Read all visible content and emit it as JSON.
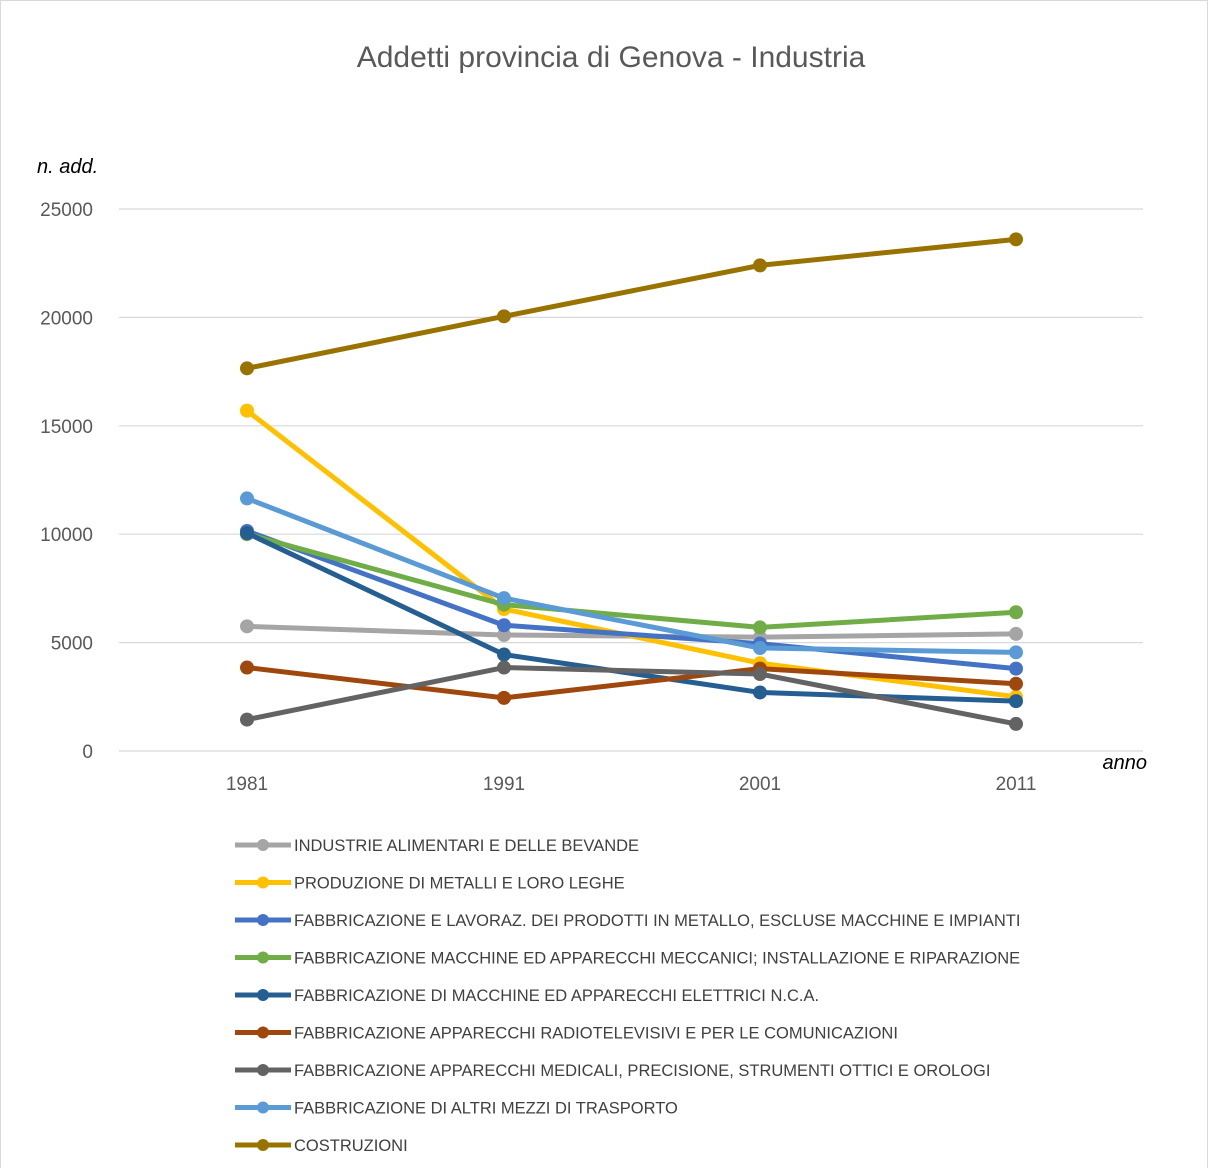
{
  "chart_data": {
    "type": "line",
    "title": "Addetti provincia di Genova - Industria",
    "xlabel": "anno",
    "ylabel": "n. add.",
    "x": [
      "1981",
      "1991",
      "2001",
      "2011"
    ],
    "ylim": [
      0,
      25000
    ],
    "yticks": [
      "0",
      "5000",
      "10000",
      "15000",
      "20000",
      "25000"
    ],
    "grid": true,
    "legend": "bottom",
    "series": [
      {
        "name": "INDUSTRIE ALIMENTARI E DELLE BEVANDE",
        "color": "#a5a5a5",
        "values": [
          5750,
          5350,
          5250,
          5400
        ]
      },
      {
        "name": "PRODUZIONE DI METALLI E LORO LEGHE",
        "color": "#ffc000",
        "values": [
          15700,
          6550,
          4050,
          2500
        ]
      },
      {
        "name": "FABBRICAZIONE E LAVORAZ. DEI PRODOTTI IN METALLO, ESCLUSE MACCHINE E IMPIANTI",
        "color": "#4472c4",
        "values": [
          10150,
          5800,
          4950,
          3800
        ]
      },
      {
        "name": "FABBRICAZIONE MACCHINE ED APPARECCHI MECCANICI; INSTALLAZIONE E RIPARAZIONE",
        "color": "#70ad47",
        "values": [
          10000,
          6750,
          5700,
          6400
        ]
      },
      {
        "name": "FABBRICAZIONE DI MACCHINE ED APPARECCHI ELETTRICI N.C.A.",
        "color": "#255e91",
        "values": [
          10050,
          4450,
          2700,
          2300
        ]
      },
      {
        "name": "FABBRICAZIONE APPARECCHI RADIOTELEVISIVI E PER LE COMUNICAZIONI",
        "color": "#9e480e",
        "values": [
          3850,
          2450,
          3800,
          3100
        ]
      },
      {
        "name": "FABBRICAZIONE APPARECCHI MEDICALI, PRECISIONE, STRUMENTI OTTICI E OROLOGI",
        "color": "#636363",
        "values": [
          1450,
          3850,
          3550,
          1250
        ]
      },
      {
        "name": "FABBRICAZIONE DI ALTRI MEZZI DI TRASPORTO",
        "color": "#5b9bd5",
        "values": [
          11650,
          7050,
          4750,
          4550
        ]
      },
      {
        "name": "COSTRUZIONI",
        "color": "#997300",
        "values": [
          17650,
          20050,
          22400,
          23600
        ]
      }
    ]
  }
}
